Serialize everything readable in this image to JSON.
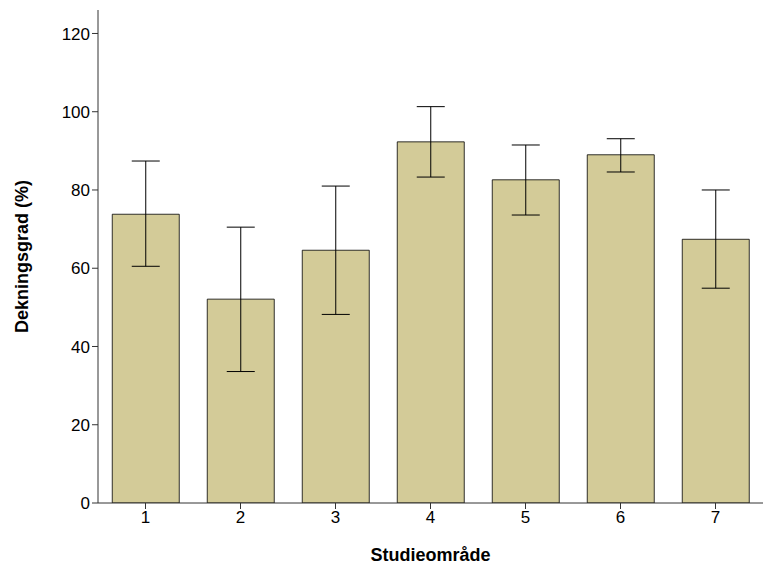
{
  "chart_data": {
    "type": "bar",
    "x_label": "Studieområde",
    "y_label": "Dekningsgrad (%)",
    "categories": [
      "1",
      "2",
      "3",
      "4",
      "5",
      "6",
      "7"
    ],
    "values": [
      73.8,
      52.1,
      64.6,
      92.3,
      82.6,
      89.0,
      67.4
    ],
    "error_low": [
      60.5,
      33.6,
      48.2,
      83.3,
      73.6,
      84.6,
      54.9
    ],
    "error_high": [
      87.4,
      70.5,
      81.0,
      101.3,
      91.5,
      93.1,
      80.0
    ],
    "color": "#d3cb98",
    "ylim": [
      0,
      126
    ],
    "yticks": [
      0,
      20,
      40,
      60,
      80,
      100,
      120
    ],
    "grid": false
  }
}
